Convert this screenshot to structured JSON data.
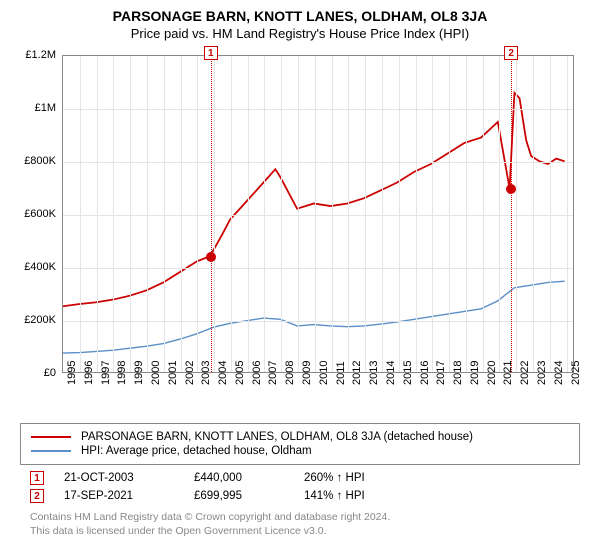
{
  "title": "PARSONAGE BARN, KNOTT LANES, OLDHAM, OL8 3JA",
  "subtitle": "Price paid vs. HM Land Registry's House Price Index (HPI)",
  "chart": {
    "type": "line",
    "background_color": "#ffffff",
    "grid_color": "#e5e5e5",
    "border_color": "#888888",
    "xlim": [
      1995,
      2025.5
    ],
    "ylim": [
      0,
      1200000
    ],
    "yticks": [
      {
        "v": 0,
        "label": "£0"
      },
      {
        "v": 200000,
        "label": "£200K"
      },
      {
        "v": 400000,
        "label": "£400K"
      },
      {
        "v": 600000,
        "label": "£600K"
      },
      {
        "v": 800000,
        "label": "£800K"
      },
      {
        "v": 1000000,
        "label": "£1M"
      },
      {
        "v": 1200000,
        "label": "£1.2M"
      }
    ],
    "xticks": [
      1995,
      1996,
      1997,
      1998,
      1999,
      2000,
      2001,
      2002,
      2003,
      2004,
      2005,
      2006,
      2007,
      2008,
      2009,
      2010,
      2011,
      2012,
      2013,
      2014,
      2015,
      2016,
      2017,
      2018,
      2019,
      2020,
      2021,
      2022,
      2023,
      2024,
      2025
    ],
    "series": [
      {
        "name": "PARSONAGE BARN, KNOTT LANES, OLDHAM, OL8 3JA (detached house)",
        "color": "#cc0000",
        "width": 1.8,
        "data": [
          [
            1995,
            250000
          ],
          [
            1996,
            258000
          ],
          [
            1997,
            265000
          ],
          [
            1998,
            275000
          ],
          [
            1999,
            290000
          ],
          [
            2000,
            310000
          ],
          [
            2001,
            340000
          ],
          [
            2002,
            380000
          ],
          [
            2003,
            420000
          ],
          [
            2003.8,
            440000
          ],
          [
            2004.5,
            520000
          ],
          [
            2005,
            580000
          ],
          [
            2006,
            650000
          ],
          [
            2007,
            720000
          ],
          [
            2007.7,
            770000
          ],
          [
            2008,
            740000
          ],
          [
            2008.5,
            680000
          ],
          [
            2009,
            620000
          ],
          [
            2010,
            640000
          ],
          [
            2011,
            630000
          ],
          [
            2012,
            640000
          ],
          [
            2013,
            660000
          ],
          [
            2014,
            690000
          ],
          [
            2015,
            720000
          ],
          [
            2016,
            760000
          ],
          [
            2017,
            790000
          ],
          [
            2018,
            830000
          ],
          [
            2019,
            870000
          ],
          [
            2020,
            890000
          ],
          [
            2021,
            950000
          ],
          [
            2021.7,
            699995
          ],
          [
            2021.71,
            699995
          ],
          [
            2022,
            1060000
          ],
          [
            2022.3,
            1040000
          ],
          [
            2022.7,
            880000
          ],
          [
            2023,
            820000
          ],
          [
            2023.5,
            800000
          ],
          [
            2024,
            790000
          ],
          [
            2024.5,
            810000
          ],
          [
            2025,
            800000
          ]
        ]
      },
      {
        "name": "HPI: Average price, detached house, Oldham",
        "color": "#5b8fc7",
        "width": 1.4,
        "data": [
          [
            1995,
            72000
          ],
          [
            1996,
            74000
          ],
          [
            1997,
            78000
          ],
          [
            1998,
            83000
          ],
          [
            1999,
            90000
          ],
          [
            2000,
            98000
          ],
          [
            2001,
            108000
          ],
          [
            2002,
            125000
          ],
          [
            2003,
            145000
          ],
          [
            2004,
            170000
          ],
          [
            2005,
            185000
          ],
          [
            2006,
            195000
          ],
          [
            2007,
            205000
          ],
          [
            2008,
            200000
          ],
          [
            2009,
            175000
          ],
          [
            2010,
            180000
          ],
          [
            2011,
            175000
          ],
          [
            2012,
            172000
          ],
          [
            2013,
            175000
          ],
          [
            2014,
            182000
          ],
          [
            2015,
            190000
          ],
          [
            2016,
            200000
          ],
          [
            2017,
            210000
          ],
          [
            2018,
            220000
          ],
          [
            2019,
            230000
          ],
          [
            2020,
            240000
          ],
          [
            2021,
            270000
          ],
          [
            2022,
            320000
          ],
          [
            2023,
            330000
          ],
          [
            2024,
            340000
          ],
          [
            2025,
            345000
          ]
        ]
      }
    ],
    "markers": [
      {
        "n": "1",
        "x": 2003.8,
        "y": 440000
      },
      {
        "n": "2",
        "x": 2021.7,
        "y": 699995
      }
    ]
  },
  "legend": {
    "rows": [
      {
        "color": "#cc0000",
        "label": "PARSONAGE BARN, KNOTT LANES, OLDHAM, OL8 3JA (detached house)"
      },
      {
        "color": "#5b8fc7",
        "label": "HPI: Average price, detached house, Oldham"
      }
    ]
  },
  "sales": [
    {
      "n": "1",
      "date": "21-OCT-2003",
      "price": "£440,000",
      "delta": "260% ↑ HPI"
    },
    {
      "n": "2",
      "date": "17-SEP-2021",
      "price": "£699,995",
      "delta": "141% ↑ HPI"
    }
  ],
  "footer": {
    "line1": "Contains HM Land Registry data © Crown copyright and database right 2024.",
    "line2": "This data is licensed under the Open Government Licence v3.0."
  }
}
